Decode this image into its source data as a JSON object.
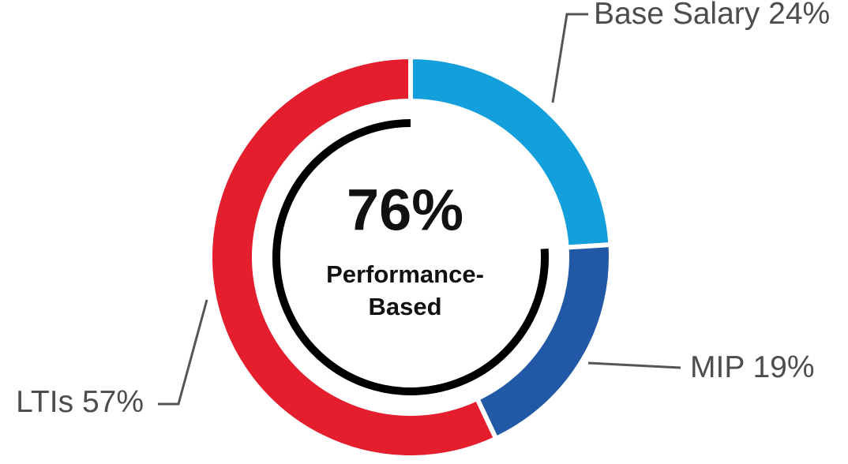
{
  "chart_data": {
    "type": "donut",
    "categories": [
      "Base Salary",
      "MIP",
      "LTIs"
    ],
    "values": [
      24,
      19,
      57
    ],
    "value_labels": [
      "24%",
      "19%",
      "57%"
    ],
    "colors": [
      "#139fdc",
      "#2159a7",
      "#e41e2d"
    ],
    "center": {
      "value": 76,
      "label": "76%",
      "text_lines": [
        "Performance-",
        "Based"
      ]
    }
  }
}
